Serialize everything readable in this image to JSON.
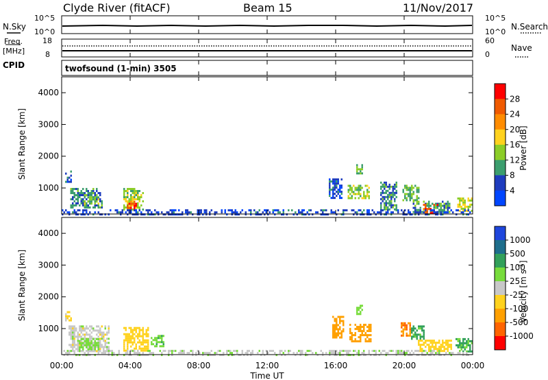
{
  "header": {
    "station": "Clyde River (fitACF)",
    "beam": "Beam 15",
    "date": "11/Nov/2017"
  },
  "status": {
    "nsky_label": "N.Sky",
    "nsearch_label": "N.Search",
    "freq_label": "Freq.",
    "freq_unit": "[MHz]",
    "nave_label": "Nave",
    "cpid_label": "CPID",
    "cpid_text": "twofsound (1-min) 3505",
    "nsky_ticks": [
      "10^5",
      "10^0"
    ],
    "nsearch_ticks": [
      "10^5",
      "10^0"
    ],
    "freq_ticks": [
      "18",
      "8"
    ],
    "nave_ticks": [
      "60",
      "0"
    ]
  },
  "colorbars": {
    "power": {
      "label": "Power [dB]",
      "ticks": [
        "28",
        "24",
        "20",
        "16",
        "12",
        "8",
        "4"
      ],
      "colors": [
        "#ff0000",
        "#f05a00",
        "#ff8c00",
        "#ffd21e",
        "#8ccd28",
        "#3c9e6e",
        "#1e3cbe",
        "#0046ff"
      ]
    },
    "velocity": {
      "label": "Velocity [m s",
      "label_sup": "-1",
      "label_end": "]",
      "ticks": [
        "1000",
        "500",
        "100",
        "25",
        "-25",
        "-100",
        "-500",
        "-1000"
      ],
      "colors": [
        "#1e46dc",
        "#1e6e8c",
        "#32a05a",
        "#78dc3c",
        "#c8c8c8",
        "#ffd21e",
        "#ffa000",
        "#ff6400",
        "#ff0000"
      ]
    }
  },
  "chart_data": {
    "type": "heatmap",
    "xlabel": "Time UT",
    "ylabel": "Slant Range [km]",
    "x_ticks": [
      "00:00",
      "04:00",
      "08:00",
      "12:00",
      "16:00",
      "20:00",
      "00:00"
    ],
    "xlim_hours": [
      0,
      24
    ],
    "ylim_km": [
      180,
      4500
    ],
    "y_ticks": [
      "1000",
      "2000",
      "3000",
      "4000"
    ],
    "panels": [
      {
        "name": "power",
        "regions": [
          {
            "t": [
              0.2,
              0.6
            ],
            "r": [
              1200,
              1550
            ],
            "value": 6
          },
          {
            "t": [
              0.5,
              2.4
            ],
            "r": [
              400,
              1000
            ],
            "value": 9
          },
          {
            "t": [
              1.3,
              2.2
            ],
            "r": [
              500,
              800
            ],
            "value": 13
          },
          {
            "t": [
              3.6,
              4.8
            ],
            "r": [
              300,
              1000
            ],
            "value": 14
          },
          {
            "t": [
              3.8,
              4.4
            ],
            "r": [
              300,
              600
            ],
            "value": 26
          },
          {
            "t": [
              15.6,
              16.4
            ],
            "r": [
              700,
              1300
            ],
            "value": 6
          },
          {
            "t": [
              16.7,
              18.0
            ],
            "r": [
              650,
              1100
            ],
            "value": 14
          },
          {
            "t": [
              17.2,
              17.6
            ],
            "r": [
              1450,
              1750
            ],
            "value": 12
          },
          {
            "t": [
              18.6,
              19.6
            ],
            "r": [
              350,
              1200
            ],
            "value": 9
          },
          {
            "t": [
              19.9,
              20.9
            ],
            "r": [
              600,
              1100
            ],
            "value": 12
          },
          {
            "t": [
              20.5,
              22.6
            ],
            "r": [
              250,
              600
            ],
            "value": 10
          },
          {
            "t": [
              21.1,
              22.0
            ],
            "r": [
              200,
              500
            ],
            "value": 27
          },
          {
            "t": [
              23.1,
              24.0
            ],
            "r": [
              250,
              700
            ],
            "value": 16
          },
          {
            "t": [
              0.0,
              24.0
            ],
            "r": [
              200,
              330
            ],
            "value": 5
          }
        ]
      },
      {
        "name": "velocity",
        "regions": [
          {
            "t": [
              0.2,
              0.6
            ],
            "r": [
              1250,
              1550
            ],
            "value": -50
          },
          {
            "t": [
              0.4,
              2.8
            ],
            "r": [
              300,
              1100
            ],
            "value": 0
          },
          {
            "t": [
              1.0,
              2.2
            ],
            "r": [
              350,
              700
            ],
            "value": 60
          },
          {
            "t": [
              3.6,
              5.1
            ],
            "r": [
              300,
              1050
            ],
            "value": -60
          },
          {
            "t": [
              5.2,
              6.0
            ],
            "r": [
              450,
              800
            ],
            "value": 80
          },
          {
            "t": [
              15.8,
              16.5
            ],
            "r": [
              700,
              1400
            ],
            "value": -200
          },
          {
            "t": [
              16.8,
              18.1
            ],
            "r": [
              600,
              1150
            ],
            "value": -300
          },
          {
            "t": [
              17.2,
              17.6
            ],
            "r": [
              1450,
              1750
            ],
            "value": 60
          },
          {
            "t": [
              19.8,
              20.4
            ],
            "r": [
              800,
              1200
            ],
            "value": -600
          },
          {
            "t": [
              20.4,
              21.2
            ],
            "r": [
              650,
              1100
            ],
            "value": 150
          },
          {
            "t": [
              20.8,
              22.8
            ],
            "r": [
              300,
              650
            ],
            "value": -60
          },
          {
            "t": [
              23.0,
              24.0
            ],
            "r": [
              300,
              700
            ],
            "value": 120
          },
          {
            "t": [
              0.0,
              24.0
            ],
            "r": [
              200,
              330
            ],
            "value": 10
          }
        ]
      }
    ]
  }
}
